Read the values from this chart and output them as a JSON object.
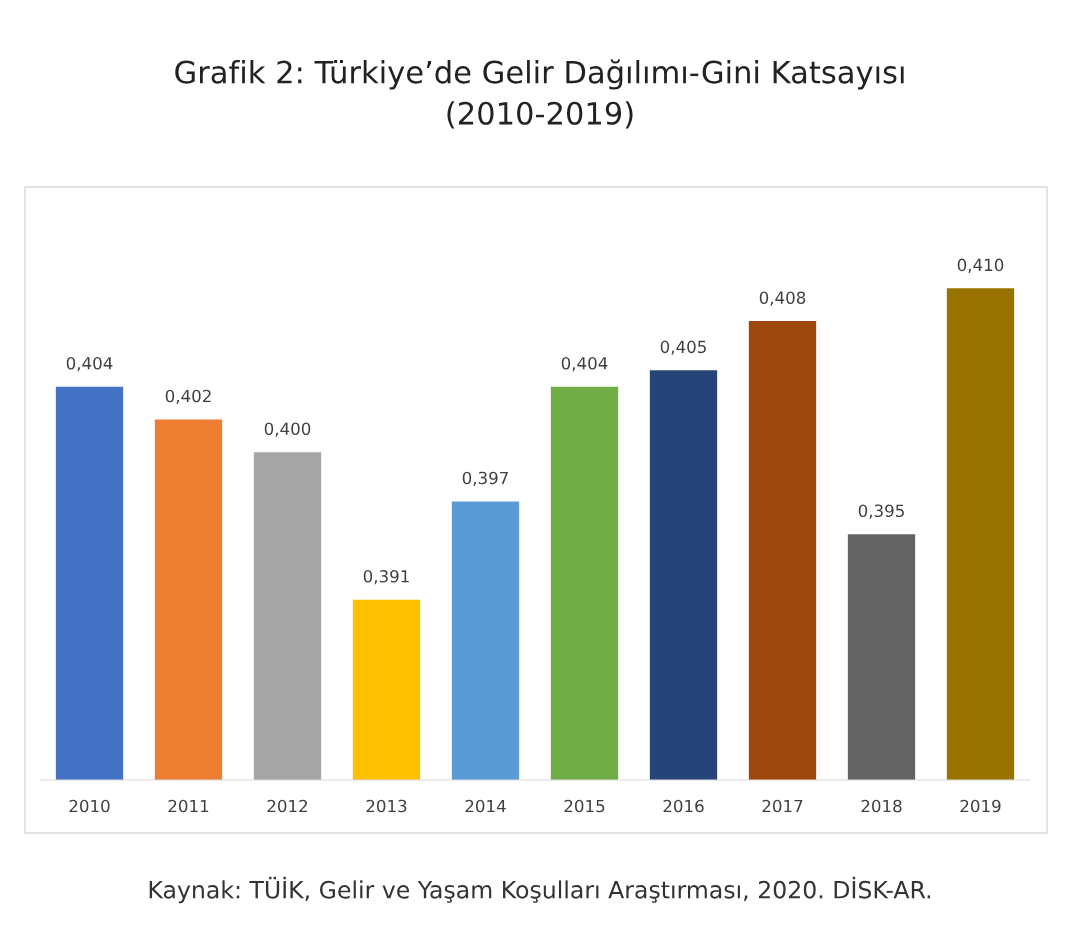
{
  "chart_data": {
    "type": "bar",
    "title": "Grafik 2: Türkiye’de Gelir Dağılımı-Gini Katsayısı\n(2010-2019)",
    "categories": [
      "2010",
      "2011",
      "2012",
      "2013",
      "2014",
      "2015",
      "2016",
      "2017",
      "2018",
      "2019"
    ],
    "values": [
      0.404,
      0.402,
      0.4,
      0.391,
      0.397,
      0.404,
      0.405,
      0.408,
      0.395,
      0.41
    ],
    "value_labels": [
      "0,404",
      "0,402",
      "0,400",
      "0,391",
      "0,397",
      "0,404",
      "0,405",
      "0,408",
      "0,395",
      "0,410"
    ],
    "colors": [
      "#4472c4",
      "#ed7d31",
      "#a5a5a5",
      "#ffc000",
      "#5b9bd5",
      "#70ad47",
      "#264478",
      "#9e480e",
      "#636363",
      "#997300"
    ],
    "ylim": [
      0.38,
      0.416
    ],
    "tick_labels": "x",
    "grid": false,
    "legend": false,
    "annotations": [
      "Kaynak: TÜİK, Gelir ve Yaşam Koşulları Araştırması, 2020. DİSK-AR."
    ]
  }
}
